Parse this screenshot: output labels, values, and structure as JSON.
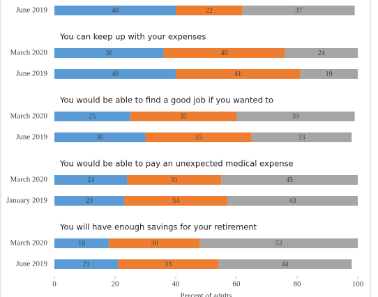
{
  "chart_data": {
    "type": "bar",
    "orientation": "horizontal",
    "stacked": true,
    "colors": [
      "#5b9bd5",
      "#ed7d31",
      "#a5a5a5"
    ],
    "groups": [
      {
        "rows": [
          {
            "label": "June 2019",
            "values": [
              40,
              22,
              37
            ]
          }
        ]
      },
      {
        "title": "You can keep up with your expenses",
        "rows": [
          {
            "label": "March 2020",
            "values": [
              36,
              40,
              24
            ]
          },
          {
            "label": "June 2019",
            "values": [
              40,
              41,
              19
            ]
          }
        ]
      },
      {
        "title": "You would be able to find a good job if you wanted to",
        "rows": [
          {
            "label": "March 2020",
            "values": [
              25,
              35,
              39
            ]
          },
          {
            "label": "June 2019",
            "values": [
              30,
              35,
              33
            ]
          }
        ]
      },
      {
        "title": "You would be able to pay an unexpected medical expense",
        "rows": [
          {
            "label": "March 2020",
            "values": [
              24,
              31,
              45
            ]
          },
          {
            "label": "January 2019",
            "values": [
              23,
              34,
              43
            ]
          }
        ]
      },
      {
        "title": "You will have enough savings for your retirement",
        "rows": [
          {
            "label": "March 2020",
            "values": [
              18,
              30,
              52
            ]
          },
          {
            "label": "June 2019",
            "values": [
              21,
              33,
              44
            ]
          }
        ]
      }
    ],
    "xlim": [
      0,
      100
    ],
    "xticks": [
      0,
      20,
      40,
      60,
      80,
      100
    ],
    "xlabel": "Percent of adults"
  }
}
